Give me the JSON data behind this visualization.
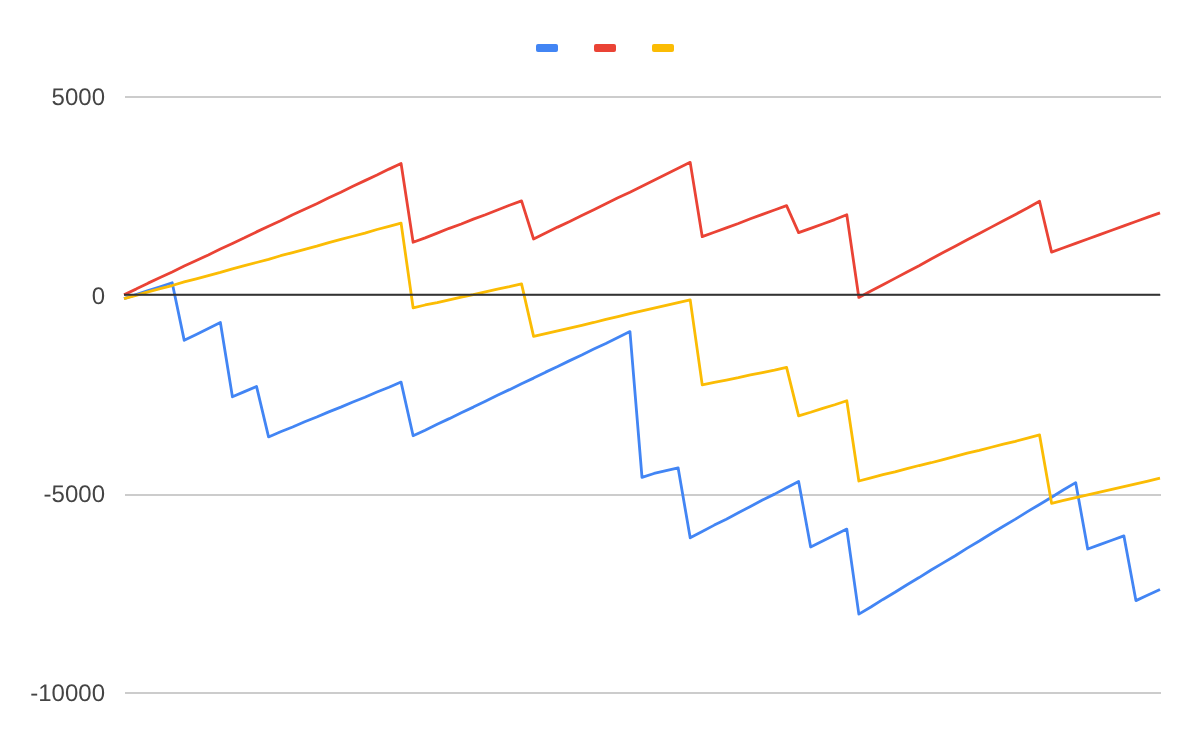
{
  "chart_data": {
    "type": "line",
    "categories": [
      null,
      null,
      null,
      null,
      null,
      null,
      null,
      null,
      null,
      null,
      null,
      null,
      null,
      null,
      null,
      null,
      null,
      null,
      null,
      null,
      null,
      null,
      null,
      null,
      null,
      null,
      null,
      null,
      null,
      null,
      null,
      null,
      null,
      null,
      null,
      null,
      null,
      null,
      null,
      null,
      null,
      null,
      null,
      null,
      null,
      null,
      null,
      null,
      null,
      null,
      null,
      null,
      null,
      null,
      null,
      null,
      null,
      null,
      null,
      null,
      null,
      null,
      null,
      null,
      null,
      null,
      null,
      null,
      null,
      null,
      null,
      null,
      null,
      null,
      null,
      null,
      null,
      null,
      null,
      null,
      null,
      null,
      null,
      null,
      null,
      null,
      null
    ],
    "series": [
      {
        "color": "#4285f4",
        "values": [
          -100,
          0,
          100,
          200,
          300,
          -1150,
          -1000,
          -850,
          -700,
          -2570,
          -2440,
          -2310,
          -3580,
          -3450,
          -3330,
          -3200,
          -3080,
          -2950,
          -2830,
          -2700,
          -2580,
          -2450,
          -2330,
          -2200,
          -3550,
          -3410,
          -3260,
          -3120,
          -2970,
          -2830,
          -2680,
          -2530,
          -2390,
          -2240,
          -2100,
          -1950,
          -1810,
          -1660,
          -1520,
          -1370,
          -1230,
          -1080,
          -930,
          -4600,
          -4500,
          -4430,
          -4360,
          -6120,
          -5960,
          -5800,
          -5650,
          -5490,
          -5330,
          -5170,
          -5020,
          -4860,
          -4700,
          -6350,
          -6200,
          -6050,
          -5900,
          -8040,
          -7860,
          -7670,
          -7490,
          -7300,
          -7120,
          -6930,
          -6750,
          -6570,
          -6380,
          -6200,
          -6010,
          -5830,
          -5650,
          -5460,
          -5280,
          -5100,
          -4910,
          -4730,
          -6400,
          -6290,
          -6180,
          -6070,
          -7700,
          -7560,
          -7420
        ]
      },
      {
        "color": "#ea4335",
        "values": [
          0,
          140,
          290,
          430,
          570,
          720,
          860,
          1000,
          1150,
          1290,
          1430,
          1580,
          1720,
          1860,
          2010,
          2150,
          2290,
          2440,
          2580,
          2730,
          2870,
          3010,
          3160,
          3300,
          1320,
          1430,
          1550,
          1670,
          1780,
          1900,
          2010,
          2130,
          2250,
          2360,
          1400,
          1550,
          1700,
          1840,
          1990,
          2140,
          2290,
          2440,
          2580,
          2730,
          2880,
          3030,
          3180,
          3330,
          1460,
          1570,
          1680,
          1790,
          1910,
          2020,
          2130,
          2240,
          1560,
          1670,
          1780,
          1890,
          2010,
          -70,
          90,
          250,
          410,
          570,
          730,
          900,
          1060,
          1220,
          1380,
          1540,
          1700,
          1860,
          2020,
          2180,
          2350,
          1070,
          1180,
          1290,
          1400,
          1510,
          1620,
          1730,
          1840,
          1950,
          2060
        ]
      },
      {
        "color": "#fbbc04",
        "values": [
          -100,
          -20,
          70,
          150,
          230,
          320,
          400,
          480,
          560,
          650,
          730,
          810,
          890,
          980,
          1060,
          1140,
          1220,
          1310,
          1390,
          1470,
          1550,
          1640,
          1720,
          1800,
          -330,
          -260,
          -200,
          -130,
          -60,
          0,
          70,
          140,
          200,
          270,
          -1050,
          -980,
          -910,
          -840,
          -770,
          -700,
          -620,
          -550,
          -480,
          -410,
          -340,
          -270,
          -200,
          -130,
          -2270,
          -2210,
          -2150,
          -2090,
          -2020,
          -1960,
          -1900,
          -1830,
          -3050,
          -2960,
          -2860,
          -2770,
          -2670,
          -4690,
          -4610,
          -4530,
          -4460,
          -4380,
          -4300,
          -4230,
          -4150,
          -4070,
          -3990,
          -3920,
          -3840,
          -3760,
          -3690,
          -3610,
          -3530,
          -5250,
          -5180,
          -5110,
          -5040,
          -4970,
          -4900,
          -4830,
          -4760,
          -4690,
          -4620
        ]
      }
    ],
    "ylim": [
      -10000,
      5000
    ],
    "yticks": [
      -10000,
      -5000,
      0,
      5000
    ],
    "grid": "y",
    "tick_labels": "y",
    "ref_lines": [
      {
        "axis": "y",
        "value": 0,
        "color": "#333333"
      }
    ]
  }
}
